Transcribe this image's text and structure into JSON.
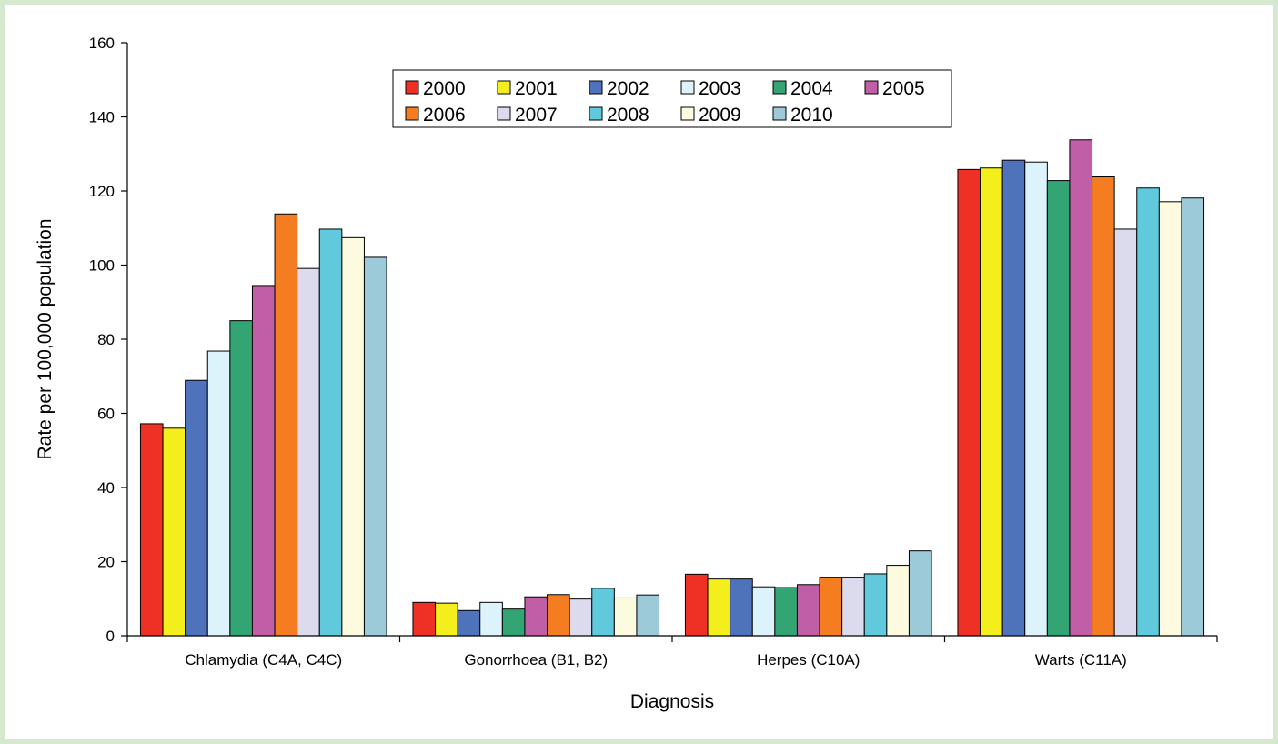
{
  "chart_data": {
    "type": "bar",
    "title": "",
    "xlabel": "Diagnosis",
    "ylabel": "Rate per 100,000 population",
    "ylim": [
      0,
      160
    ],
    "yticks": [
      0,
      20,
      40,
      60,
      80,
      100,
      120,
      140,
      160
    ],
    "grid": false,
    "legend_position": "top-center",
    "categories": [
      "Chlamydia (C4A, C4C)",
      "Gonorrhoea (B1, B2)",
      "Herpes (C10A)",
      "Warts (C11A)"
    ],
    "series": [
      {
        "name": "2000",
        "color": "#ef3024",
        "values": [
          57.2,
          9.0,
          16.6,
          125.8
        ]
      },
      {
        "name": "2001",
        "color": "#f5ee1d",
        "values": [
          56.0,
          8.8,
          15.3,
          126.2
        ]
      },
      {
        "name": "2002",
        "color": "#4f73bb",
        "values": [
          68.9,
          6.8,
          15.3,
          128.3
        ]
      },
      {
        "name": "2003",
        "color": "#ddf3fb",
        "values": [
          76.8,
          9.0,
          13.2,
          127.8
        ]
      },
      {
        "name": "2004",
        "color": "#33a473",
        "values": [
          85.0,
          7.2,
          13.0,
          122.8
        ]
      },
      {
        "name": "2005",
        "color": "#c05fa8",
        "values": [
          94.5,
          10.5,
          13.8,
          133.8
        ]
      },
      {
        "name": "2006",
        "color": "#f47c21",
        "values": [
          113.8,
          11.1,
          15.8,
          123.8
        ]
      },
      {
        "name": "2007",
        "color": "#dcdaed",
        "values": [
          99.1,
          9.9,
          15.8,
          109.7
        ]
      },
      {
        "name": "2008",
        "color": "#60c9dc",
        "values": [
          109.7,
          12.8,
          16.7,
          120.8
        ]
      },
      {
        "name": "2009",
        "color": "#fdfbdf",
        "values": [
          107.4,
          10.2,
          19.0,
          117.1
        ]
      },
      {
        "name": "2010",
        "color": "#9ccad8",
        "values": [
          102.1,
          11.0,
          22.9,
          118.1
        ]
      }
    ]
  }
}
